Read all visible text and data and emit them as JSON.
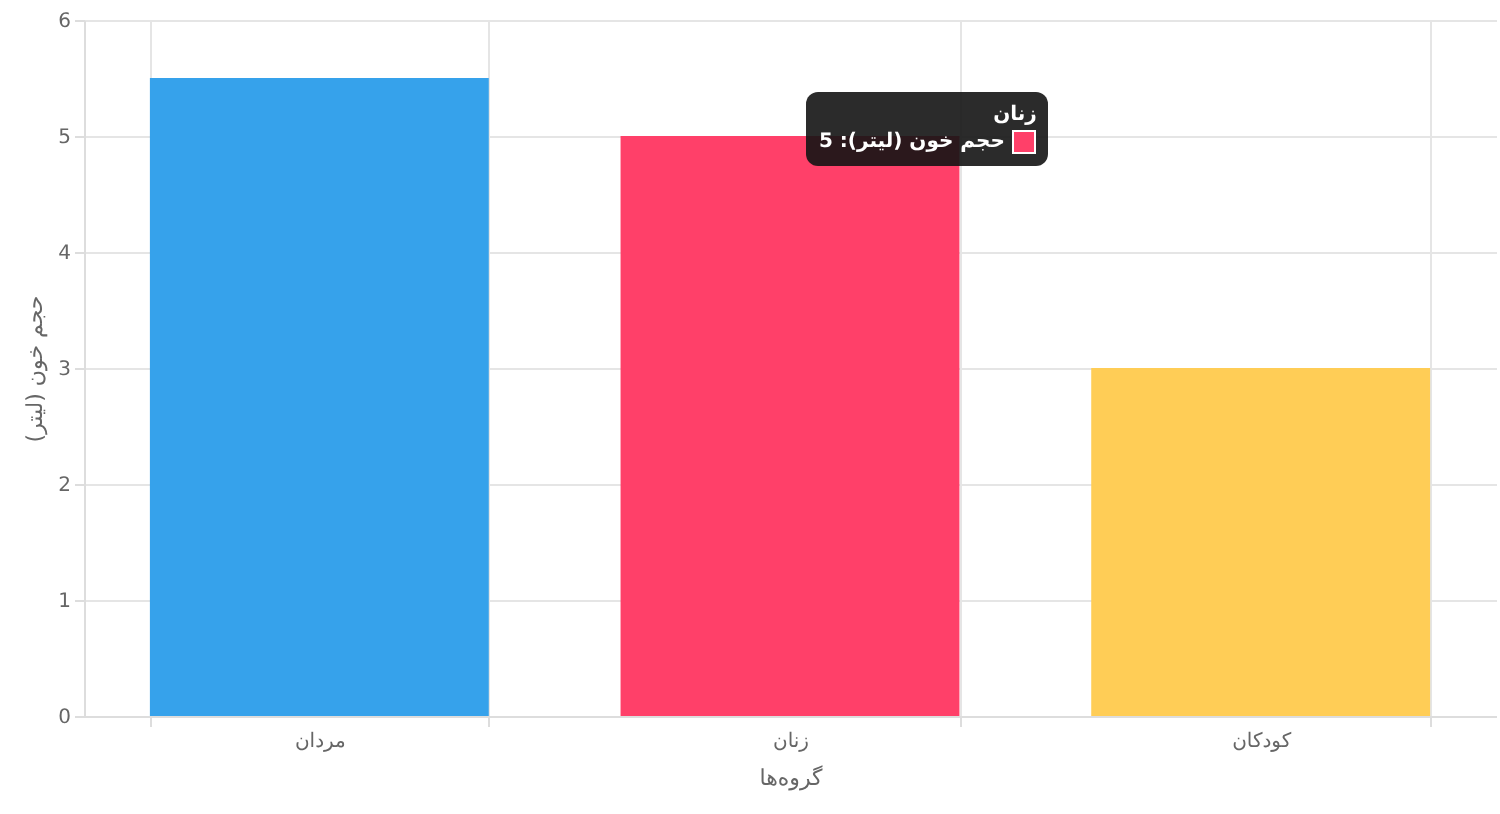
{
  "chart_data": {
    "type": "bar",
    "categories": [
      "مردان",
      "زنان",
      "کودکان"
    ],
    "values": [
      5.5,
      5,
      3
    ],
    "colors": [
      "#36a2eb",
      "#ff4069",
      "#ffcd56"
    ],
    "xlabel": "گروه‌ها",
    "ylabel": "حجم خون (لیتر)",
    "ylim": [
      0,
      6
    ],
    "yticks": [
      0,
      1,
      2,
      3,
      4,
      5,
      6
    ],
    "grid": true,
    "annotations": [
      "زنان",
      "حجم خون (لیتر): 5"
    ]
  }
}
